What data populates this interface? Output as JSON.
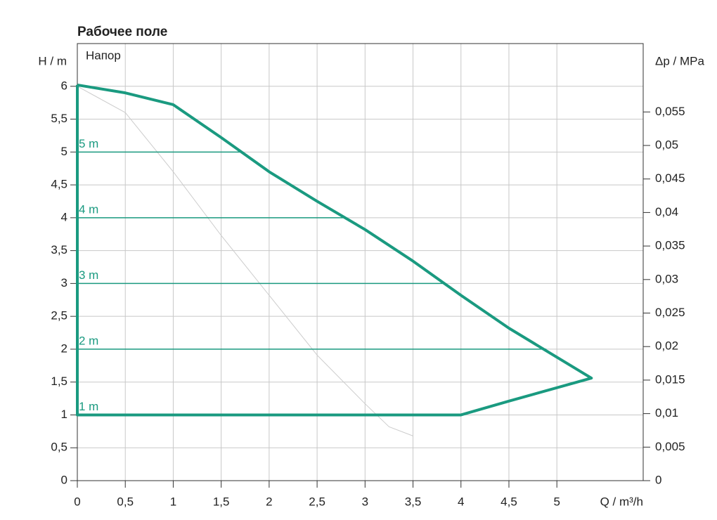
{
  "chart_data": {
    "type": "line",
    "title": "Рабочее поле",
    "annotation": "Напор",
    "ylabel": "H / m",
    "y2label": "Δp / MPa",
    "xlabel": "Q / m³/h",
    "xlim": [
      0,
      5.9
    ],
    "ylim": [
      0,
      6.65
    ],
    "y2lim": [
      0,
      0.0652
    ],
    "grid": true,
    "xticks": [
      0,
      {
        "value": 0.5,
        "label": "0,5"
      },
      1,
      {
        "value": 1.5,
        "label": "1,5"
      },
      2,
      {
        "value": 2.5,
        "label": "2,5"
      },
      3,
      {
        "value": 3.5,
        "label": "3,5"
      },
      4,
      {
        "value": 4.5,
        "label": "4,5"
      },
      5
    ],
    "yticks": [
      0,
      {
        "value": 0.5,
        "label": "0,5"
      },
      1,
      {
        "value": 1.5,
        "label": "1,5"
      },
      2,
      {
        "value": 2.5,
        "label": "2,5"
      },
      3,
      {
        "value": 3.5,
        "label": "3,5"
      },
      4,
      {
        "value": 4.5,
        "label": "4,5"
      },
      5,
      {
        "value": 5.5,
        "label": "5,5"
      },
      6
    ],
    "y2ticks": [
      0,
      {
        "value": 0.005,
        "label": "0,005"
      },
      {
        "value": 0.01,
        "label": "0,01"
      },
      {
        "value": 0.015,
        "label": "0,015"
      },
      {
        "value": 0.02,
        "label": "0,02"
      },
      {
        "value": 0.025,
        "label": "0,025"
      },
      {
        "value": 0.03,
        "label": "0,03"
      },
      {
        "value": 0.035,
        "label": "0,035"
      },
      {
        "value": 0.04,
        "label": "0,04"
      },
      {
        "value": 0.045,
        "label": "0,045"
      },
      {
        "value": 0.05,
        "label": "0,05"
      },
      {
        "value": 0.055,
        "label": "0,055"
      }
    ],
    "series": [
      {
        "color": "#cccccc",
        "width": 1,
        "x": [
          0,
          0.5,
          1,
          1.5,
          2,
          2.5,
          3,
          3.25,
          3.5
        ],
        "values": [
          6.0,
          5.6,
          4.7,
          3.73,
          2.82,
          1.91,
          1.17,
          0.82,
          0.68
        ]
      },
      {
        "color": "#1a9a80",
        "width": 1.5,
        "label": "5 m",
        "x": [
          0,
          1.71
        ],
        "values": [
          5,
          5
        ]
      },
      {
        "color": "#1a9a80",
        "width": 1.5,
        "label": "4 m",
        "x": [
          0,
          2.77
        ],
        "values": [
          4,
          4
        ]
      },
      {
        "color": "#1a9a80",
        "width": 1.5,
        "label": "3 m",
        "x": [
          0,
          3.83
        ],
        "values": [
          3,
          3
        ]
      },
      {
        "color": "#1a9a80",
        "width": 1.5,
        "label": "2 m",
        "x": [
          0,
          4.89
        ],
        "values": [
          2,
          2
        ]
      },
      {
        "color": "#1a9a80",
        "width": 1.5,
        "label": "1 m",
        "x": [
          0,
          4
        ],
        "values": [
          1,
          1
        ]
      },
      {
        "color": "#1a9a80",
        "width": 4,
        "x": [
          0,
          0.5,
          1,
          1.5,
          2,
          2.5,
          3,
          3.5,
          4,
          4.5,
          5.36,
          4.5,
          4,
          0,
          0
        ],
        "values": [
          6.02,
          5.9,
          5.72,
          5.22,
          4.7,
          4.25,
          3.82,
          3.34,
          2.82,
          2.32,
          1.56,
          1.21,
          1.0,
          1.0,
          6.02
        ]
      }
    ]
  }
}
